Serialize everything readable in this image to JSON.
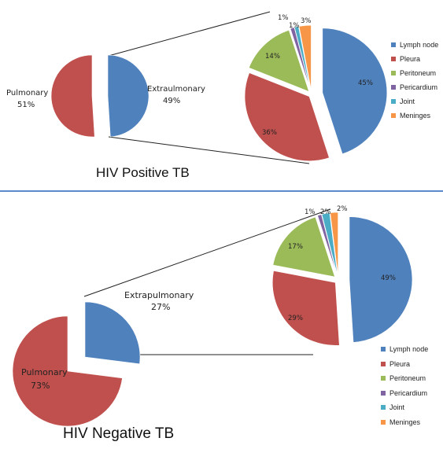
{
  "chart_data": [
    {
      "type": "pie",
      "title": "HIV Positive TB",
      "main_pie": {
        "slices": [
          {
            "label": "Pulmonary",
            "value": 51,
            "text": "51%",
            "color": "#c0504d"
          },
          {
            "label": "Extraulmonary",
            "value": 49,
            "text": "49%",
            "color": "#4f81bd"
          }
        ]
      },
      "breakout_pie": {
        "slices": [
          {
            "label": "Lymph node",
            "value": 45,
            "text": "45%",
            "color": "#4f81bd"
          },
          {
            "label": "Pleura",
            "value": 36,
            "text": "36%",
            "color": "#c0504d"
          },
          {
            "label": "Peritoneum",
            "value": 14,
            "text": "14%",
            "color": "#9bbb59"
          },
          {
            "label": "Pericardium",
            "value": 1,
            "text": "1%",
            "color": "#8064a2"
          },
          {
            "label": "Joint",
            "value": 1,
            "text": "1%",
            "color": "#4bacc6"
          },
          {
            "label": "Meninges",
            "value": 3,
            "text": "3%",
            "color": "#f79646"
          }
        ]
      },
      "legend": [
        "Lymph node",
        "Pleura",
        "Peritoneum",
        "Pericardium",
        "Joint",
        "Meninges"
      ]
    },
    {
      "type": "pie",
      "title": "HIV Negative TB",
      "main_pie": {
        "slices": [
          {
            "label": "Pulmonary",
            "value": 73,
            "text": "73%",
            "color": "#c0504d"
          },
          {
            "label": "Extrapulmonary",
            "value": 27,
            "text": "27%",
            "color": "#4f81bd"
          }
        ]
      },
      "breakout_pie": {
        "slices": [
          {
            "label": "Lymph node",
            "value": 49,
            "text": "49%",
            "color": "#4f81bd"
          },
          {
            "label": "Pleura",
            "value": 29,
            "text": "29%",
            "color": "#c0504d"
          },
          {
            "label": "Peritoneum",
            "value": 17,
            "text": "17%",
            "color": "#9bbb59"
          },
          {
            "label": "Pericardium",
            "value": 1,
            "text": "1%",
            "color": "#8064a2"
          },
          {
            "label": "Joint",
            "value": 2,
            "text": "2%",
            "color": "#4bacc6"
          },
          {
            "label": "Meninges",
            "value": 2,
            "text": "2%",
            "color": "#f79646"
          }
        ]
      },
      "legend": [
        "Lymph node",
        "Pleura",
        "Peritoneum",
        "Pericardium",
        "Joint",
        "Meninges"
      ]
    }
  ]
}
